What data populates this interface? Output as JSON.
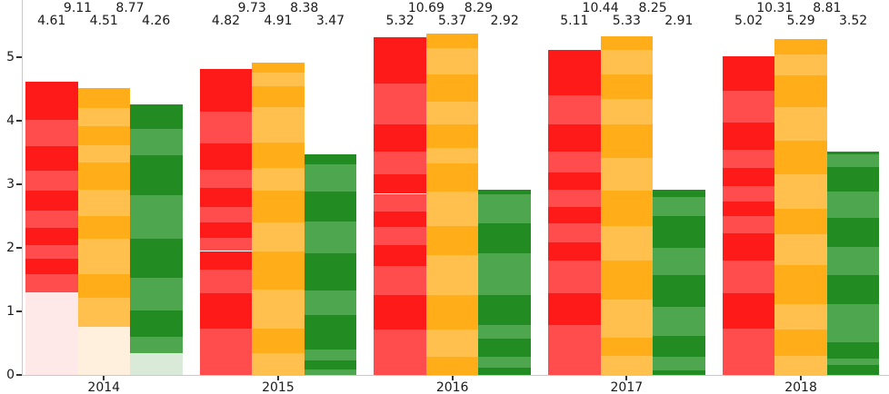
{
  "chart_data": {
    "type": "bar",
    "title": "",
    "xlabel": "",
    "ylabel": "",
    "categories": [
      "2014",
      "2015",
      "2016",
      "2017",
      "2018"
    ],
    "yticks": [
      "0",
      "1",
      "2",
      "3",
      "4",
      "5"
    ],
    "ylim": [
      0,
      5.9
    ],
    "grid": false,
    "legend_position": "none",
    "series": [
      {
        "name": "red",
        "values": [
          4.61,
          4.82,
          5.32,
          5.11,
          5.02
        ],
        "value_labels": [
          "4.61",
          "4.82",
          "5.32",
          "5.11",
          "5.02"
        ],
        "color_strong": "#ff1a1a",
        "color_light": "#ff4d4d",
        "color_faded": "#ffe8e8",
        "stripe_boundaries": [
          [
            4.61,
            4.01,
            3.6,
            3.22,
            2.9,
            2.59,
            2.32,
            2.05,
            1.83,
            1.59,
            1.3,
            0
          ],
          [
            4.82,
            4.14,
            3.64,
            3.23,
            2.95,
            2.64,
            2.4,
            2.16,
            1.95,
            1.66,
            1.28,
            0.73,
            0
          ],
          [
            5.32,
            4.59,
            3.95,
            3.52,
            3.16,
            2.85,
            2.57,
            2.33,
            2.05,
            1.71,
            1.26,
            0.71,
            0
          ],
          [
            5.11,
            4.4,
            3.95,
            3.52,
            3.19,
            2.92,
            2.64,
            2.38,
            2.09,
            1.8,
            1.28,
            0.78,
            0
          ],
          [
            5.02,
            4.47,
            3.97,
            3.54,
            3.26,
            2.97,
            2.73,
            2.5,
            2.23,
            1.8,
            1.28,
            0.73,
            0
          ]
        ],
        "fade_bottom_segment_in_year": "2014"
      },
      {
        "name": "orange",
        "values": [
          4.51,
          4.91,
          5.37,
          5.33,
          5.29
        ],
        "value_labels": [
          "4.51",
          "4.91",
          "5.37",
          "5.33",
          "5.29"
        ],
        "color_strong": "#ffae1a",
        "color_light": "#ffc04d",
        "color_faded": "#fff0dd",
        "stripe_boundaries": [
          [
            4.51,
            4.2,
            3.92,
            3.61,
            3.34,
            2.92,
            2.5,
            2.14,
            1.59,
            1.21,
            0.76,
            0
          ],
          [
            4.91,
            4.76,
            4.54,
            4.21,
            3.66,
            3.26,
            2.9,
            2.4,
            1.95,
            1.35,
            0.73,
            0.35,
            0
          ],
          [
            5.37,
            5.14,
            4.73,
            4.3,
            3.95,
            3.57,
            3.33,
            2.88,
            2.35,
            1.88,
            1.26,
            0.71,
            0.28,
            0
          ],
          [
            5.33,
            5.11,
            4.73,
            4.35,
            3.95,
            3.42,
            2.9,
            2.35,
            1.8,
            1.19,
            0.59,
            0.3,
            0
          ],
          [
            5.29,
            5.04,
            4.71,
            4.21,
            3.69,
            3.16,
            2.61,
            2.21,
            1.73,
            1.11,
            0.71,
            0.3,
            0
          ]
        ],
        "fade_bottom_segment_in_year": "2014"
      },
      {
        "name": "green",
        "values": [
          4.26,
          3.47,
          2.92,
          2.91,
          3.52
        ],
        "value_labels": [
          "4.26",
          "3.47",
          "2.92",
          "2.91",
          "3.52"
        ],
        "color_strong": "#228b22",
        "color_light": "#4ea64e",
        "color_faded": "#d9ead9",
        "stripe_boundaries": [
          [
            4.26,
            3.87,
            3.46,
            2.83,
            2.14,
            1.53,
            1.02,
            0.6,
            0.35,
            0
          ],
          [
            3.47,
            3.32,
            2.88,
            2.42,
            1.92,
            1.33,
            0.95,
            0.4,
            0.23,
            0.09,
            0
          ],
          [
            2.92,
            2.85,
            2.38,
            1.92,
            1.26,
            0.78,
            0.57,
            0.28,
            0.11,
            0
          ],
          [
            2.91,
            2.8,
            2.5,
            2.0,
            1.57,
            1.07,
            0.61,
            0.28,
            0.07,
            0
          ],
          [
            3.52,
            3.47,
            3.27,
            2.88,
            2.47,
            2.02,
            1.57,
            1.11,
            0.52,
            0.26,
            0.16,
            0
          ]
        ],
        "fade_bottom_segment_in_year": "2014"
      }
    ],
    "pair_sum_labels": [
      [
        "9.11",
        "8.77"
      ],
      [
        "9.73",
        "8.38"
      ],
      [
        "10.69",
        "8.29"
      ],
      [
        "10.44",
        "8.25"
      ],
      [
        "10.31",
        "8.81"
      ]
    ]
  },
  "colors": {
    "spine": "#c9c9c9",
    "tick": "#333333",
    "text": "#1a1a1a",
    "background": "#ffffff"
  }
}
